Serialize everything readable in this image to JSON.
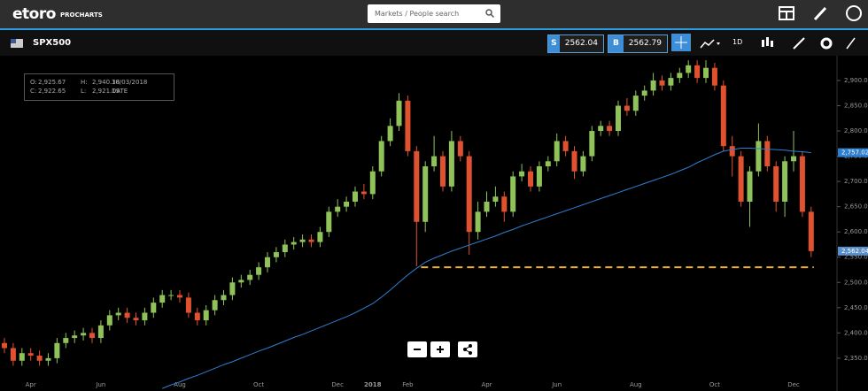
{
  "header": {
    "logo": "etoro",
    "logo_sub": "PROCHARTS",
    "search_placeholder": "Markets / People search"
  },
  "toolbar": {
    "symbol": "SPX500",
    "sell_label": "S",
    "sell_price": "2562.04",
    "buy_label": "B",
    "buy_price": "2562.79",
    "interval": "1D"
  },
  "ohlc_box": {
    "rows": [
      [
        "O:",
        "2,925.67",
        "H:",
        "2,940.38",
        "10/03/2018"
      ],
      [
        "C:",
        "2,922.65",
        "L:",
        "2,921.19",
        "DATE"
      ]
    ]
  },
  "chart_data": {
    "type": "candlestick",
    "categories": [
      null,
      null,
      null,
      "Apr",
      null,
      null,
      null,
      null,
      null,
      null,
      null,
      "Jun",
      null,
      null,
      null,
      null,
      null,
      null,
      null,
      null,
      "Aug",
      null,
      null,
      null,
      null,
      null,
      null,
      null,
      null,
      "Oct",
      null,
      null,
      null,
      null,
      null,
      null,
      null,
      null,
      "Dec",
      null,
      null,
      null,
      "2018",
      null,
      null,
      null,
      "Feb",
      null,
      null,
      null,
      null,
      null,
      null,
      null,
      null,
      "Apr",
      null,
      null,
      null,
      null,
      null,
      null,
      null,
      "Jun",
      null,
      null,
      null,
      null,
      null,
      null,
      null,
      null,
      "Aug",
      null,
      null,
      null,
      null,
      null,
      null,
      null,
      null,
      "Oct",
      null,
      null,
      null,
      null,
      null,
      null,
      null,
      null,
      "Dec",
      null,
      null
    ],
    "candles": {
      "up_color": "#8fc35a",
      "down_color": "#e0522f",
      "open": [
        2380,
        2370,
        2345,
        2360,
        2355,
        2345,
        2350,
        2380,
        2390,
        2395,
        2400,
        2390,
        2415,
        2435,
        2440,
        2430,
        2425,
        2440,
        2460,
        2475,
        2475,
        2470,
        2440,
        2425,
        2445,
        2465,
        2475,
        2500,
        2505,
        2515,
        2530,
        2550,
        2560,
        2575,
        2580,
        2585,
        2580,
        2600,
        2640,
        2650,
        2660,
        2680,
        2675,
        2720,
        2780,
        2810,
        2860,
        2760,
        2620,
        2730,
        2750,
        2690,
        2780,
        2750,
        2600,
        2640,
        2660,
        2670,
        2640,
        2710,
        2720,
        2690,
        2730,
        2740,
        2780,
        2760,
        2720,
        2750,
        2800,
        2810,
        2800,
        2850,
        2840,
        2870,
        2880,
        2900,
        2890,
        2905,
        2915,
        2930,
        2905,
        2925,
        2890,
        2770,
        2750,
        2660,
        2720,
        2780,
        2730,
        2660,
        2740,
        2750,
        2640
      ],
      "high": [
        2390,
        2380,
        2370,
        2370,
        2365,
        2360,
        2390,
        2400,
        2405,
        2410,
        2410,
        2425,
        2445,
        2450,
        2450,
        2440,
        2450,
        2470,
        2485,
        2485,
        2485,
        2480,
        2450,
        2455,
        2475,
        2485,
        2510,
        2515,
        2525,
        2540,
        2560,
        2570,
        2585,
        2590,
        2595,
        2595,
        2610,
        2650,
        2665,
        2670,
        2690,
        2695,
        2730,
        2790,
        2825,
        2875,
        2870,
        2770,
        2740,
        2790,
        2760,
        2800,
        2790,
        2760,
        2660,
        2680,
        2690,
        2680,
        2720,
        2735,
        2730,
        2740,
        2750,
        2795,
        2790,
        2770,
        2760,
        2810,
        2820,
        2820,
        2860,
        2865,
        2880,
        2890,
        2915,
        2910,
        2915,
        2925,
        2940,
        2940,
        2940,
        2935,
        2900,
        2790,
        2760,
        2730,
        2815,
        2790,
        2740,
        2750,
        2800,
        2760,
        2650
      ],
      "low": [
        2360,
        2335,
        2335,
        2345,
        2335,
        2335,
        2340,
        2370,
        2380,
        2385,
        2380,
        2380,
        2405,
        2425,
        2420,
        2415,
        2415,
        2430,
        2450,
        2465,
        2460,
        2430,
        2415,
        2415,
        2435,
        2455,
        2465,
        2490,
        2495,
        2505,
        2520,
        2540,
        2550,
        2565,
        2570,
        2570,
        2570,
        2590,
        2630,
        2640,
        2650,
        2665,
        2665,
        2710,
        2770,
        2800,
        2750,
        2532,
        2600,
        2720,
        2680,
        2680,
        2740,
        2555,
        2585,
        2630,
        2650,
        2620,
        2630,
        2700,
        2680,
        2680,
        2720,
        2730,
        2750,
        2705,
        2710,
        2740,
        2790,
        2790,
        2790,
        2830,
        2830,
        2860,
        2870,
        2880,
        2880,
        2895,
        2905,
        2895,
        2895,
        2880,
        2760,
        2710,
        2650,
        2610,
        2710,
        2720,
        2640,
        2630,
        2720,
        2630,
        2550
      ],
      "close": [
        2370,
        2345,
        2360,
        2355,
        2345,
        2350,
        2380,
        2390,
        2395,
        2400,
        2390,
        2415,
        2435,
        2440,
        2430,
        2425,
        2440,
        2460,
        2475,
        2475,
        2470,
        2440,
        2425,
        2445,
        2465,
        2475,
        2500,
        2505,
        2515,
        2530,
        2550,
        2560,
        2575,
        2580,
        2585,
        2580,
        2600,
        2640,
        2650,
        2660,
        2680,
        2675,
        2720,
        2780,
        2810,
        2860,
        2760,
        2620,
        2730,
        2750,
        2690,
        2780,
        2750,
        2600,
        2640,
        2660,
        2670,
        2640,
        2710,
        2720,
        2690,
        2730,
        2740,
        2780,
        2760,
        2720,
        2750,
        2800,
        2810,
        2800,
        2850,
        2840,
        2870,
        2880,
        2900,
        2890,
        2905,
        2915,
        2930,
        2905,
        2925,
        2890,
        2770,
        2750,
        2660,
        2720,
        2780,
        2730,
        2660,
        2740,
        2750,
        2640,
        2562.04
      ]
    },
    "moving_average": {
      "color": "#2f7fd1",
      "values": [
        null,
        null,
        null,
        null,
        null,
        null,
        null,
        null,
        null,
        null,
        null,
        null,
        null,
        null,
        null,
        null,
        null,
        null,
        2290,
        2297,
        2303,
        2310,
        2316,
        2323,
        2330,
        2337,
        2343,
        2350,
        2357,
        2364,
        2370,
        2377,
        2384,
        2391,
        2397,
        2404,
        2411,
        2418,
        2425,
        2432,
        2440,
        2449,
        2458,
        2471,
        2485,
        2500,
        2515,
        2528,
        2540,
        2548,
        2555,
        2562,
        2568,
        2574,
        2580,
        2586,
        2592,
        2599,
        2605,
        2612,
        2618,
        2624,
        2630,
        2636,
        2642,
        2648,
        2654,
        2660,
        2666,
        2672,
        2678,
        2684,
        2690,
        2696,
        2702,
        2708,
        2714,
        2721,
        2728,
        2737,
        2745,
        2753,
        2760,
        2763,
        2766,
        2766,
        2765,
        2764,
        2763,
        2762,
        2760,
        2759,
        2757.02
      ]
    },
    "price_markers": [
      {
        "value": 2757.02,
        "label": "2,757.02",
        "color": "#2f7fd1"
      },
      {
        "value": 2562.04,
        "label": "2,562.04",
        "color": "#5b8fc9"
      }
    ],
    "support_line": {
      "value": 2530,
      "color": "#f0b429"
    },
    "ylim": [
      2285,
      2949
    ],
    "yticks": [
      {
        "value": 2350,
        "label": "2,350.00"
      },
      {
        "value": 2400,
        "label": "2,400.00"
      },
      {
        "value": 2450,
        "label": "2,450.00"
      },
      {
        "value": 2500,
        "label": "2,500.00"
      },
      {
        "value": 2550,
        "label": "2,550.00"
      },
      {
        "value": 2600,
        "label": "2,600.00"
      },
      {
        "value": 2650,
        "label": "2,650.00"
      },
      {
        "value": 2700,
        "label": "2,700.00"
      },
      {
        "value": 2750,
        "label": "2,750.00"
      },
      {
        "value": 2800,
        "label": "2,800.00"
      },
      {
        "value": 2850,
        "label": "2,850.00"
      },
      {
        "value": 2900,
        "label": "2,900.00"
      }
    ],
    "grid": false
  }
}
